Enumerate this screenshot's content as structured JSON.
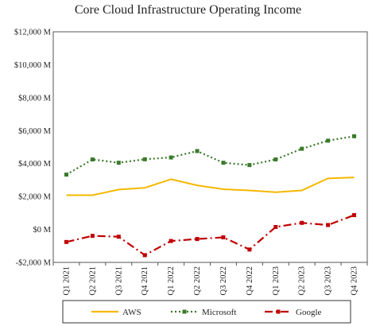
{
  "chart_data": {
    "type": "line",
    "title": "Core Cloud Infrastructure Operating Income",
    "xlabel": "",
    "ylabel": "",
    "categories": [
      "Q1 2021",
      "Q2 2021",
      "Q3 2021",
      "Q4 2021",
      "Q1 2022",
      "Q2 2022",
      "Q3 2022",
      "Q4 2022",
      "Q1 2023",
      "Q2 2023",
      "Q3 2023",
      "Q4 2023"
    ],
    "ylim": [
      -2000,
      12000
    ],
    "yticks": [
      -2000,
      0,
      2000,
      4000,
      6000,
      8000,
      10000,
      12000
    ],
    "ytick_labels": [
      "-$2,000 M",
      "$0 M",
      "$2,000 M",
      "$4,000 M",
      "$6,000 M",
      "$8,000 M",
      "$10,000 M",
      "$12,000 M"
    ],
    "grid": false,
    "legend_position": "bottom",
    "series": [
      {
        "name": "AWS",
        "color": "#F5B800",
        "style": "solid",
        "marker": "none",
        "values": [
          2080,
          2080,
          2420,
          2530,
          3050,
          2680,
          2440,
          2370,
          2260,
          2370,
          3100,
          3160
        ]
      },
      {
        "name": "Microsoft",
        "color": "#3A7A2A",
        "style": "dotted",
        "marker": "square",
        "values": [
          3330,
          4250,
          4050,
          4260,
          4370,
          4760,
          4050,
          3910,
          4250,
          4900,
          5390,
          5660
        ]
      },
      {
        "name": "Google",
        "color": "#C00000",
        "style": "dashdot",
        "marker": "square",
        "values": [
          -760,
          -390,
          -440,
          -1560,
          -700,
          -580,
          -480,
          -1220,
          150,
          400,
          270,
          870
        ]
      }
    ]
  }
}
